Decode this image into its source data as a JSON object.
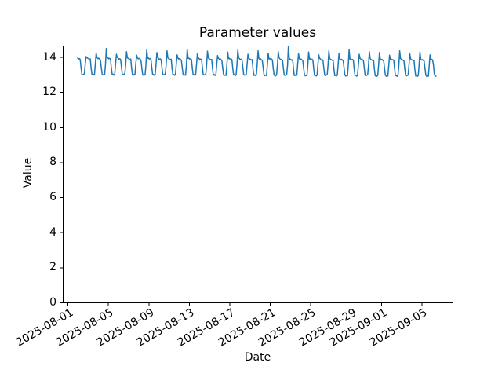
{
  "figure": {
    "background": "#ffffff"
  },
  "chart_data": {
    "type": "line",
    "title": "Parameter values",
    "xlabel": "Date",
    "ylabel": "Value",
    "line_color": "#1f77b4",
    "axis_color": "#000000",
    "grid": false,
    "legend": "none",
    "ylim": [
      0,
      14.65
    ],
    "y_ticks": [
      "0",
      "2",
      "4",
      "6",
      "8",
      "10",
      "12",
      "14"
    ],
    "x_day_zero": "2025-08-01",
    "xlim_days": [
      -0.47,
      38.06
    ],
    "x_ticks": [
      {
        "label": "2025-08-01",
        "day": 0
      },
      {
        "label": "2025-08-05",
        "day": 4
      },
      {
        "label": "2025-08-09",
        "day": 8
      },
      {
        "label": "2025-08-13",
        "day": 12
      },
      {
        "label": "2025-08-17",
        "day": 16
      },
      {
        "label": "2025-08-21",
        "day": 20
      },
      {
        "label": "2025-08-25",
        "day": 24
      },
      {
        "label": "2025-08-29",
        "day": 28
      },
      {
        "label": "2025-09-01",
        "day": 31
      },
      {
        "label": "2025-09-05",
        "day": 35
      }
    ],
    "series": [
      {
        "name": "parameter",
        "start": "2025-08-02 00:00",
        "start_day": 1.0,
        "interval_hours": 2,
        "values": [
          13.94,
          13.88,
          13.91,
          13.86,
          13.4,
          13.02,
          12.98,
          13.01,
          13.05,
          13.58,
          14.02,
          13.97,
          13.92,
          13.9,
          13.86,
          13.89,
          13.35,
          12.99,
          13.03,
          12.97,
          13.02,
          13.62,
          14.22,
          13.95,
          13.9,
          13.93,
          13.88,
          13.84,
          13.42,
          13.04,
          12.97,
          13.0,
          12.98,
          13.55,
          14.48,
          13.93,
          13.95,
          13.89,
          13.92,
          13.87,
          13.37,
          13.0,
          13.02,
          12.96,
          13.03,
          13.6,
          14.15,
          13.98,
          13.93,
          13.87,
          13.9,
          13.85,
          13.41,
          13.01,
          12.99,
          13.02,
          13.04,
          13.57,
          14.3,
          13.96,
          13.91,
          13.89,
          13.85,
          13.88,
          13.36,
          12.98,
          13.02,
          12.96,
          13.01,
          13.61,
          14.1,
          13.94,
          13.89,
          13.92,
          13.87,
          13.83,
          13.43,
          13.03,
          12.96,
          12.99,
          12.97,
          13.56,
          14.42,
          13.92,
          13.94,
          13.88,
          13.91,
          13.86,
          13.38,
          12.99,
          13.01,
          12.95,
          13.02,
          13.59,
          14.25,
          13.97,
          13.92,
          13.86,
          13.89,
          13.84,
          13.4,
          13.0,
          12.98,
          13.01,
          13.03,
          13.58,
          14.35,
          13.95,
          13.9,
          13.88,
          13.84,
          13.87,
          13.34,
          12.97,
          13.01,
          12.95,
          13.0,
          13.6,
          14.12,
          13.93,
          13.88,
          13.91,
          13.86,
          13.82,
          13.41,
          13.02,
          12.95,
          12.98,
          12.96,
          13.54,
          14.45,
          13.91,
          13.93,
          13.87,
          13.9,
          13.85,
          13.36,
          12.98,
          13.0,
          12.94,
          13.01,
          13.58,
          14.2,
          13.96,
          13.91,
          13.85,
          13.88,
          13.83,
          13.39,
          12.99,
          12.97,
          13.0,
          13.02,
          13.56,
          14.33,
          13.94,
          13.89,
          13.87,
          13.83,
          13.86,
          13.33,
          12.96,
          13.0,
          12.94,
          12.99,
          13.59,
          14.08,
          13.92,
          13.87,
          13.9,
          13.85,
          13.81,
          13.4,
          13.01,
          12.94,
          12.97,
          12.95,
          13.53,
          14.28,
          13.9,
          13.92,
          13.86,
          13.89,
          13.84,
          13.35,
          12.97,
          12.99,
          12.93,
          13.0,
          13.57,
          14.4,
          13.95,
          13.9,
          13.84,
          13.87,
          13.82,
          13.38,
          12.98,
          12.96,
          12.99,
          13.01,
          13.55,
          14.15,
          13.93,
          13.88,
          13.86,
          13.82,
          13.85,
          13.32,
          12.95,
          12.99,
          12.93,
          12.98,
          13.58,
          14.35,
          13.91,
          13.86,
          13.89,
          13.84,
          13.8,
          13.39,
          13.0,
          12.93,
          12.96,
          12.94,
          13.52,
          14.22,
          13.89,
          13.91,
          13.85,
          13.88,
          13.83,
          13.34,
          12.96,
          12.98,
          12.92,
          12.99,
          13.56,
          14.3,
          13.94,
          13.89,
          13.83,
          13.86,
          13.81,
          13.37,
          12.97,
          12.95,
          12.98,
          13.0,
          13.54,
          14.62,
          13.92,
          13.87,
          13.85,
          13.81,
          13.84,
          13.31,
          12.94,
          12.98,
          12.92,
          12.97,
          13.57,
          14.18,
          13.9,
          13.85,
          13.88,
          13.83,
          13.79,
          13.38,
          12.99,
          12.92,
          12.95,
          12.93,
          13.51,
          14.28,
          13.88,
          13.9,
          13.84,
          13.87,
          13.82,
          13.33,
          12.95,
          12.97,
          12.91,
          12.98,
          13.55,
          14.12,
          13.93,
          13.88,
          13.82,
          13.85,
          13.8,
          13.36,
          12.96,
          12.94,
          12.97,
          12.99,
          13.53,
          14.35,
          13.91,
          13.86,
          13.84,
          13.8,
          13.83,
          13.3,
          12.93,
          12.97,
          12.91,
          12.96,
          13.56,
          14.2,
          13.89,
          13.84,
          13.87,
          13.82,
          13.78,
          13.37,
          12.98,
          12.91,
          12.94,
          12.92,
          13.5,
          14.42,
          13.87,
          13.89,
          13.83,
          13.86,
          13.81,
          13.32,
          12.94,
          12.96,
          12.9,
          12.97,
          13.54,
          14.15,
          13.92,
          13.87,
          13.81,
          13.84,
          13.79,
          13.35,
          12.95,
          12.93,
          12.96,
          12.98,
          13.52,
          14.3,
          13.9,
          13.85,
          13.83,
          13.79,
          13.82,
          13.29,
          12.92,
          12.96,
          12.9,
          12.95,
          13.55,
          14.25,
          13.88,
          13.83,
          13.86,
          13.81,
          13.77,
          13.36,
          12.97,
          12.9,
          12.93,
          12.91,
          13.49,
          14.1,
          13.86,
          13.88,
          13.82,
          13.85,
          13.8,
          13.31,
          12.93,
          12.95,
          12.89,
          12.96,
          13.53,
          14.35,
          13.91,
          13.86,
          13.8,
          13.83,
          13.78,
          13.34,
          12.94,
          12.92,
          12.95,
          12.97,
          13.51,
          14.18,
          13.89,
          13.84,
          13.82,
          13.78,
          13.81,
          13.28,
          12.91,
          12.95,
          12.89,
          12.94,
          13.54,
          14.28,
          13.87,
          13.82,
          13.85,
          13.8,
          13.76,
          13.35,
          12.96,
          12.89,
          12.92,
          12.9,
          13.48,
          14.12,
          13.85,
          13.87,
          13.83,
          13.56,
          13.04,
          12.93,
          12.9
        ]
      }
    ]
  }
}
